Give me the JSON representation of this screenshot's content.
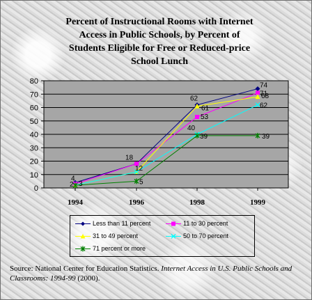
{
  "title_lines": [
    "Percent of Instructional Rooms with Internet",
    "Access in Public Schools, by Percent of",
    "Students Eligible for Free or Reduced-price",
    "School Lunch"
  ],
  "source": {
    "prefix": "Source: National Center for Education Statistics.",
    "italic": "Internet Access in U.S. Public Schools and Classrooms: 1994-99",
    "suffix": "(2000)."
  },
  "chart_data": {
    "type": "line",
    "x": [
      "1994",
      "1996",
      "1998",
      "1999"
    ],
    "ylim": [
      0,
      80
    ],
    "yticks": [
      0,
      10,
      20,
      30,
      40,
      50,
      60,
      70,
      80
    ],
    "grid": "horizontal",
    "legend": "bottom",
    "series": [
      {
        "name": "Less than 11 percent",
        "values": [
          4,
          18,
          62,
          74
        ],
        "color": "#000080",
        "marker": "diamond"
      },
      {
        "name": "11 to 30 percent",
        "values": [
          3,
          18,
          53,
          71
        ],
        "color": "#ff00ff",
        "marker": "square"
      },
      {
        "name": "31 to 49 percent",
        "values": [
          2,
          12,
          61,
          68
        ],
        "color": "#ffff00",
        "marker": "triangle"
      },
      {
        "name": "50 to 70 percent",
        "values": [
          2,
          12,
          40,
          62
        ],
        "color": "#00ffff",
        "marker": "x"
      },
      {
        "name": "71 percent or more",
        "values": [
          2,
          5,
          39,
          39
        ],
        "color": "#008000",
        "marker": "star"
      }
    ],
    "data_labels": [
      {
        "x": "1994",
        "text": "4",
        "series": 0
      },
      {
        "x": "1994",
        "text": "3",
        "series": 1
      },
      {
        "x": "1994",
        "text": "2",
        "series": 4
      },
      {
        "x": "1996",
        "text": "18",
        "series": 0
      },
      {
        "x": "1996",
        "text": "12",
        "series": 3
      },
      {
        "x": "1996",
        "text": "5",
        "series": 4
      },
      {
        "x": "1998",
        "text": "62",
        "series": 0
      },
      {
        "x": "1998",
        "text": "61",
        "series": 2
      },
      {
        "x": "1998",
        "text": "53",
        "series": 1
      },
      {
        "x": "1998",
        "text": "40",
        "series": 3
      },
      {
        "x": "1998",
        "text": "39",
        "series": 4
      },
      {
        "x": "1999",
        "text": "74",
        "series": 0
      },
      {
        "x": "1999",
        "text": "71",
        "series": 1
      },
      {
        "x": "1999",
        "text": "68",
        "series": 2
      },
      {
        "x": "1999",
        "text": "62",
        "series": 3
      },
      {
        "x": "1999",
        "text": "39",
        "series": 4
      }
    ]
  }
}
